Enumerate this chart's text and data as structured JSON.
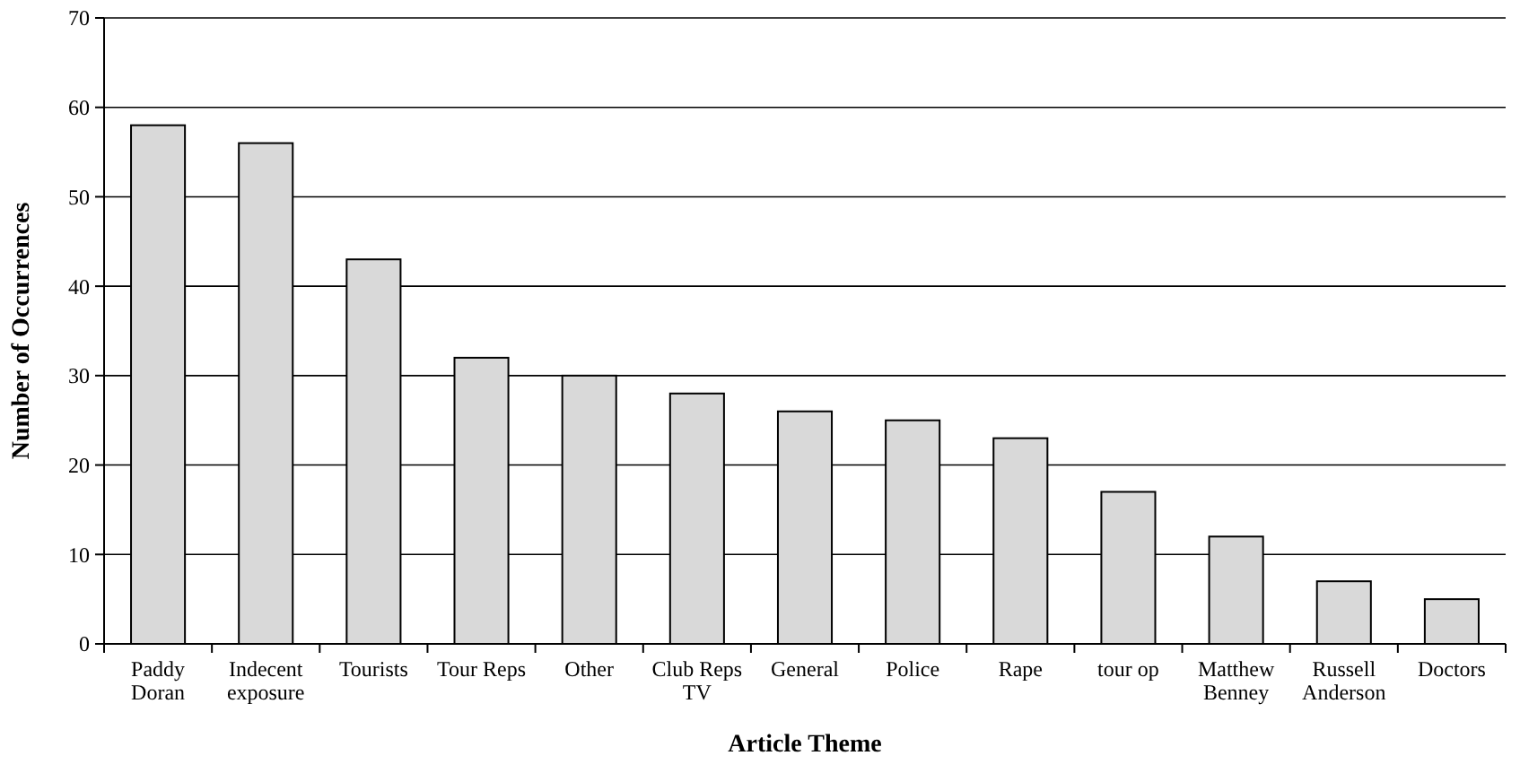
{
  "chart_data": {
    "type": "bar",
    "xlabel": "Article Theme",
    "ylabel": "Number of Occurrences",
    "categories": [
      "Paddy Doran",
      "Indecent exposure",
      "Tourists",
      "Tour Reps",
      "Other",
      "Club Reps TV",
      "General",
      "Police",
      "Rape",
      "tour op",
      "Matthew Benney",
      "Russell Anderson",
      "Doctors"
    ],
    "values": [
      58,
      56,
      43,
      32,
      30,
      28,
      26,
      25,
      23,
      17,
      12,
      7,
      5
    ],
    "color": "#d9d9d9",
    "ylim": [
      0,
      70
    ],
    "yticks": [
      0,
      10,
      20,
      30,
      40,
      50,
      60,
      70
    ],
    "grid": "y"
  }
}
